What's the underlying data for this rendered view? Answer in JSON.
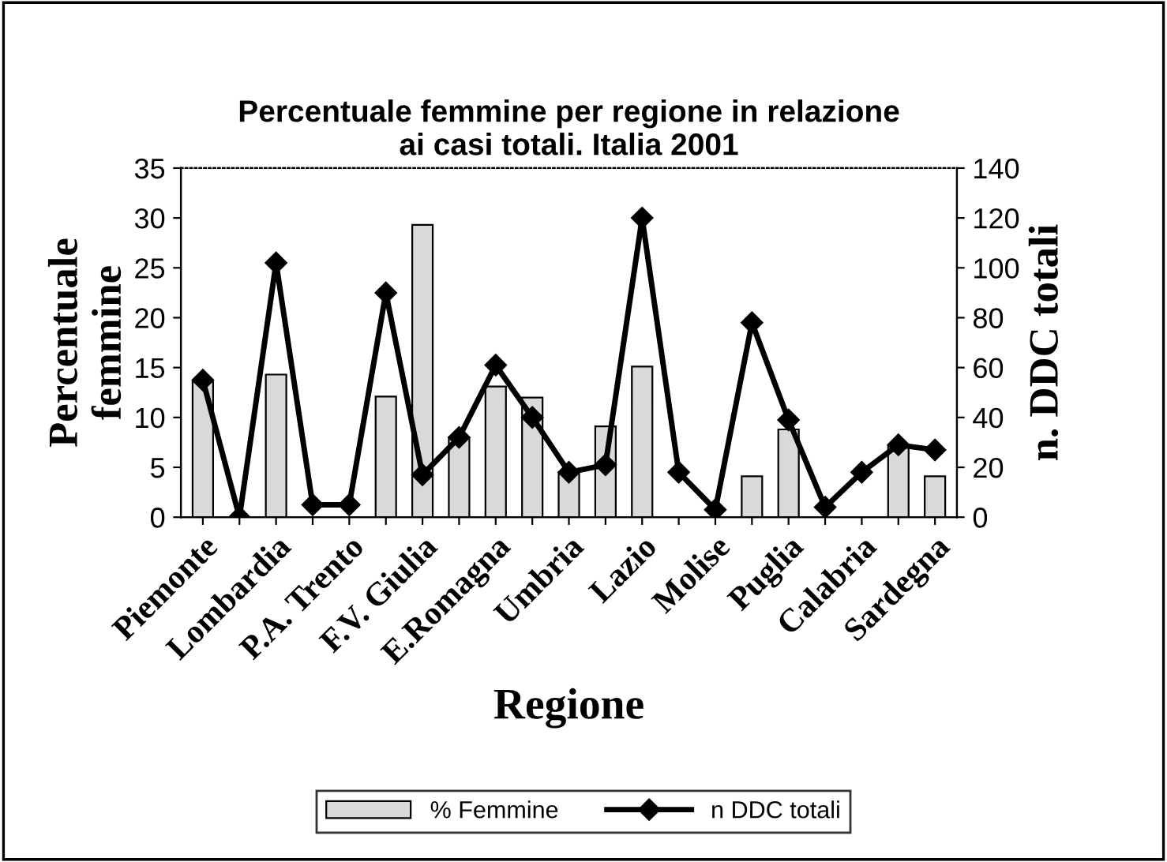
{
  "chart_data": {
    "type": "bar",
    "title": "Percentuale femmine per regione in relazione\nai casi totali. Italia 2001",
    "xlabel": "Regione",
    "ylabel": "Percentuale\nfemmine",
    "y2label": "n. DDC totali",
    "categories": [
      "Piemonte",
      null,
      "Lombardia",
      null,
      "P.A. Trento",
      null,
      "F.V. Giulia",
      null,
      "E.Romagna",
      null,
      "Umbria",
      null,
      "Lazio",
      null,
      "Molise",
      null,
      "Puglia",
      null,
      "Calabria",
      null,
      "Sardegna"
    ],
    "series": [
      {
        "name": "% Femmine",
        "type": "bar",
        "color": "#d9d9d9",
        "values": [
          13.6,
          0,
          14.3,
          0,
          0,
          12.1,
          29.3,
          8.0,
          13.1,
          12.0,
          4.5,
          9.1,
          15.1,
          0,
          0,
          4.1,
          8.8,
          0,
          0,
          7.2,
          4.1
        ]
      },
      {
        "name": "n DDC totali",
        "type": "line",
        "axis": "y2",
        "color": "#000000",
        "marker": "diamond",
        "values": [
          55,
          0,
          102,
          5,
          5,
          90,
          17,
          32,
          61,
          40,
          18,
          21,
          120,
          18,
          3,
          78,
          39,
          4,
          18,
          29,
          27
        ]
      }
    ],
    "ylim": [
      0,
      35
    ],
    "yticks": [
      0,
      5,
      10,
      15,
      20,
      25,
      30,
      35
    ],
    "y2lim": [
      0,
      140
    ],
    "y2ticks": [
      0,
      20,
      40,
      60,
      80,
      100,
      120,
      140
    ],
    "grid": false,
    "legend": "bottom"
  }
}
